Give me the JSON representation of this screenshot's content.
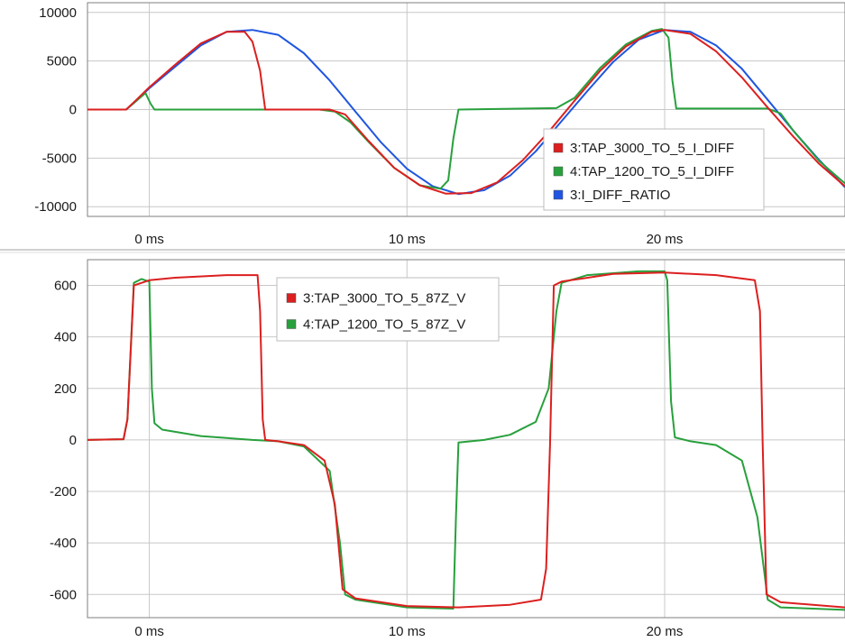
{
  "colors": {
    "red": "#dc1f1f",
    "green": "#28a03c",
    "blue": "#1f55e0",
    "grid": "#c8c8c8",
    "frame": "#7f7f7f"
  },
  "chart_data": [
    {
      "type": "line",
      "xlim": [
        -2.4,
        27
      ],
      "ylim": [
        -11000,
        11000
      ],
      "grid": true,
      "legend_position": "bottom-right",
      "x_ticks": [
        {
          "value": 0,
          "label": "0 ms"
        },
        {
          "value": 10,
          "label": "10 ms"
        },
        {
          "value": 20,
          "label": "20 ms"
        }
      ],
      "y_ticks": [
        {
          "value": 10000,
          "label": "10000"
        },
        {
          "value": 5000,
          "label": "5000"
        },
        {
          "value": 0,
          "label": "0"
        },
        {
          "value": -5000,
          "label": "-5000"
        },
        {
          "value": -10000,
          "label": "-10000"
        }
      ],
      "series": [
        {
          "name": "3:TAP_3000_TO_5_I_DIFF",
          "color": "#dc1f1f",
          "points": [
            [
              -2.4,
              0
            ],
            [
              -0.9,
              0
            ],
            [
              -0.5,
              1000
            ],
            [
              0,
              2300
            ],
            [
              1,
              4600
            ],
            [
              2,
              6800
            ],
            [
              3,
              8000
            ],
            [
              3.7,
              8000
            ],
            [
              4,
              7000
            ],
            [
              4.3,
              4000
            ],
            [
              4.5,
              0
            ],
            [
              7,
              0
            ],
            [
              7.6,
              -500
            ],
            [
              8.5,
              -3200
            ],
            [
              9.5,
              -6000
            ],
            [
              10.5,
              -7800
            ],
            [
              11.5,
              -8650
            ],
            [
              12.5,
              -8600
            ],
            [
              13.5,
              -7500
            ],
            [
              14.5,
              -5200
            ],
            [
              15.5,
              -2300
            ],
            [
              16.5,
              900
            ],
            [
              17.5,
              4000
            ],
            [
              18.5,
              6500
            ],
            [
              19.5,
              8000
            ],
            [
              20,
              8200
            ],
            [
              21,
              7800
            ],
            [
              22,
              6000
            ],
            [
              23,
              3300
            ],
            [
              24,
              200
            ],
            [
              25,
              -2800
            ],
            [
              26,
              -5600
            ],
            [
              27,
              -7900
            ]
          ]
        },
        {
          "name": "4:TAP_1200_TO_5_I_DIFF",
          "color": "#28a03c",
          "points": [
            [
              -2.4,
              0
            ],
            [
              -0.9,
              0
            ],
            [
              -0.5,
              900
            ],
            [
              -0.15,
              1700
            ],
            [
              0.05,
              600
            ],
            [
              0.2,
              0
            ],
            [
              6.6,
              0
            ],
            [
              7.2,
              -200
            ],
            [
              7.8,
              -1300
            ],
            [
              8.5,
              -3300
            ],
            [
              9.5,
              -6000
            ],
            [
              10.5,
              -7800
            ],
            [
              11.3,
              -8150
            ],
            [
              11.6,
              -7300
            ],
            [
              11.8,
              -3000
            ],
            [
              12,
              0
            ],
            [
              15.8,
              150
            ],
            [
              16.5,
              1200
            ],
            [
              17.5,
              4300
            ],
            [
              18.5,
              6700
            ],
            [
              19.5,
              8100
            ],
            [
              19.9,
              8300
            ],
            [
              20.15,
              7400
            ],
            [
              20.3,
              3000
            ],
            [
              20.45,
              100
            ],
            [
              24,
              100
            ],
            [
              24.5,
              -400
            ],
            [
              25,
              -2200
            ],
            [
              26,
              -5300
            ],
            [
              27,
              -7600
            ]
          ]
        },
        {
          "name": "3:I_DIFF_RATIO",
          "color": "#1f55e0",
          "points": [
            [
              -2.4,
              0
            ],
            [
              -0.9,
              0
            ],
            [
              -0.5,
              900
            ],
            [
              0,
              2200
            ],
            [
              1,
              4400
            ],
            [
              2,
              6600
            ],
            [
              3,
              8000
            ],
            [
              4,
              8200
            ],
            [
              5,
              7700
            ],
            [
              6,
              5800
            ],
            [
              7,
              3000
            ],
            [
              8,
              -200
            ],
            [
              9,
              -3400
            ],
            [
              10,
              -6100
            ],
            [
              11,
              -7900
            ],
            [
              12,
              -8700
            ],
            [
              13,
              -8300
            ],
            [
              14,
              -6800
            ],
            [
              15,
              -4300
            ],
            [
              16,
              -1200
            ],
            [
              17,
              1900
            ],
            [
              18,
              4900
            ],
            [
              19,
              7200
            ],
            [
              20,
              8200
            ],
            [
              21,
              8000
            ],
            [
              22,
              6600
            ],
            [
              23,
              4200
            ],
            [
              24,
              1000
            ],
            [
              25,
              -2200
            ],
            [
              26,
              -5200
            ],
            [
              27,
              -8000
            ]
          ]
        }
      ]
    },
    {
      "type": "line",
      "xlim": [
        -2.4,
        27
      ],
      "ylim": [
        -690,
        700
      ],
      "grid": true,
      "legend_position": "top-center",
      "x_ticks": [
        {
          "value": 0,
          "label": "0 ms"
        },
        {
          "value": 10,
          "label": "10 ms"
        },
        {
          "value": 20,
          "label": "20 ms"
        }
      ],
      "y_ticks": [
        {
          "value": 600,
          "label": "600"
        },
        {
          "value": 400,
          "label": "400"
        },
        {
          "value": 200,
          "label": "200"
        },
        {
          "value": 0,
          "label": "0"
        },
        {
          "value": -200,
          "label": "-200"
        },
        {
          "value": -400,
          "label": "-400"
        },
        {
          "value": -600,
          "label": "-600"
        }
      ],
      "series": [
        {
          "name": "3:TAP_3000_TO_5_87Z_V",
          "color": "#dc1f1f",
          "points": [
            [
              -2.4,
              0
            ],
            [
              -1,
              3
            ],
            [
              -0.85,
              80
            ],
            [
              -0.6,
              600
            ],
            [
              0,
              620
            ],
            [
              1,
              630
            ],
            [
              3,
              640
            ],
            [
              4.2,
              640
            ],
            [
              4.3,
              500
            ],
            [
              4.4,
              80
            ],
            [
              4.5,
              0
            ],
            [
              5,
              -5
            ],
            [
              6,
              -20
            ],
            [
              6.8,
              -80
            ],
            [
              7.2,
              -250
            ],
            [
              7.5,
              -580
            ],
            [
              8,
              -615
            ],
            [
              10,
              -645
            ],
            [
              12,
              -650
            ],
            [
              14,
              -640
            ],
            [
              15.2,
              -620
            ],
            [
              15.4,
              -500
            ],
            [
              15.55,
              -20
            ],
            [
              15.7,
              600
            ],
            [
              16,
              615
            ],
            [
              18,
              645
            ],
            [
              20,
              650
            ],
            [
              22,
              640
            ],
            [
              23.5,
              620
            ],
            [
              23.7,
              500
            ],
            [
              23.8,
              0
            ],
            [
              23.95,
              -600
            ],
            [
              24.5,
              -630
            ],
            [
              27,
              -650
            ]
          ]
        },
        {
          "name": "4:TAP_1200_TO_5_87Z_V",
          "color": "#28a03c",
          "points": [
            [
              -2.4,
              0
            ],
            [
              -1,
              3
            ],
            [
              -0.85,
              80
            ],
            [
              -0.6,
              610
            ],
            [
              -0.3,
              625
            ],
            [
              0,
              615
            ],
            [
              0.1,
              200
            ],
            [
              0.2,
              65
            ],
            [
              0.5,
              40
            ],
            [
              2,
              15
            ],
            [
              4,
              0
            ],
            [
              5,
              -5
            ],
            [
              6,
              -25
            ],
            [
              7,
              -120
            ],
            [
              7.4,
              -400
            ],
            [
              7.6,
              -600
            ],
            [
              8,
              -620
            ],
            [
              10,
              -650
            ],
            [
              11.8,
              -655
            ],
            [
              11.9,
              -300
            ],
            [
              12,
              -10
            ],
            [
              13,
              0
            ],
            [
              14,
              20
            ],
            [
              15,
              70
            ],
            [
              15.5,
              200
            ],
            [
              15.8,
              500
            ],
            [
              16,
              610
            ],
            [
              17,
              640
            ],
            [
              19,
              655
            ],
            [
              20,
              655
            ],
            [
              20.1,
              620
            ],
            [
              20.25,
              150
            ],
            [
              20.4,
              10
            ],
            [
              21,
              -5
            ],
            [
              22,
              -20
            ],
            [
              23,
              -80
            ],
            [
              23.6,
              -300
            ],
            [
              24,
              -620
            ],
            [
              24.5,
              -650
            ],
            [
              27,
              -660
            ]
          ]
        }
      ]
    }
  ]
}
